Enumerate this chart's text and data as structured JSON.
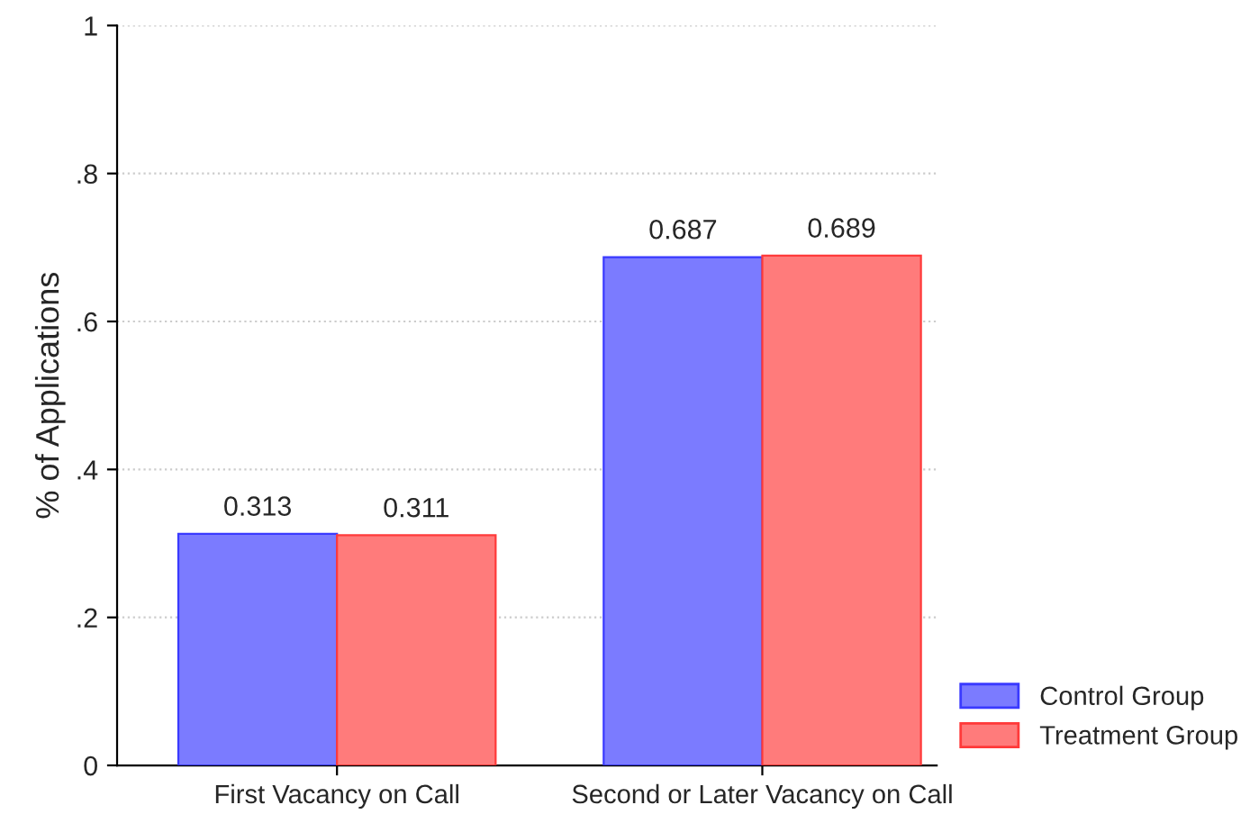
{
  "chart_data": {
    "type": "bar",
    "ylabel": "% of Applications",
    "categories": [
      "First Vacancy on Call",
      "Second or Later Vacancy on Call"
    ],
    "series": [
      {
        "name": "Control Group",
        "color": "#7b7bff",
        "values": [
          0.313,
          0.687
        ]
      },
      {
        "name": "Treatment Group",
        "color": "#ff7b7b",
        "values": [
          0.311,
          0.689
        ]
      }
    ],
    "ylim": [
      0,
      1
    ],
    "yticks": [
      0,
      {
        "value": 0.2,
        "label": ".2"
      },
      {
        "value": 0.4,
        "label": ".4"
      },
      {
        "value": 0.6,
        "label": ".6"
      },
      {
        "value": 0.8,
        "label": ".8"
      },
      1
    ],
    "grid": "y",
    "legend": "bottom right",
    "data_labels": true
  }
}
